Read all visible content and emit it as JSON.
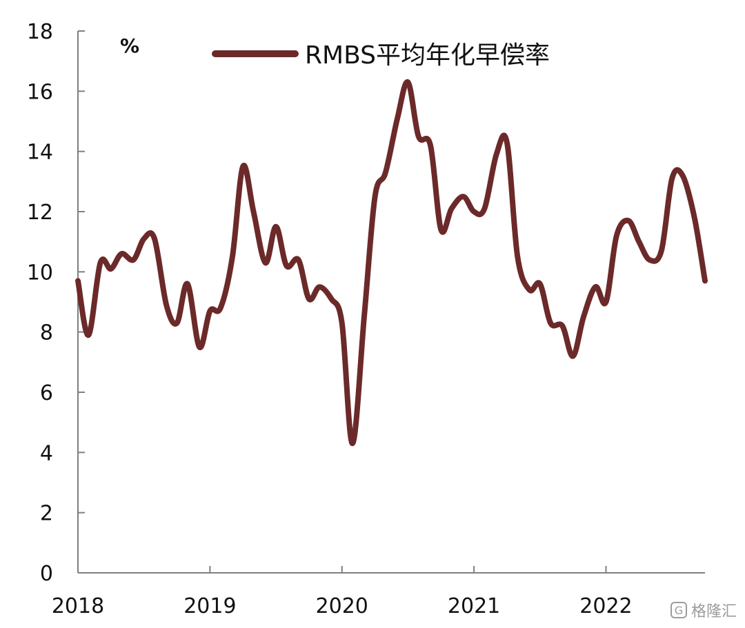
{
  "chart_data": {
    "type": "line",
    "unit": "%",
    "ylim": [
      0,
      18
    ],
    "yticks": [
      "0",
      "2",
      "4",
      "6",
      "8",
      "10",
      "12",
      "14",
      "16",
      "18"
    ],
    "xlim": [
      2018,
      2022.75
    ],
    "xticks": [
      {
        "label": "2018",
        "value": 2018
      },
      {
        "label": "2019",
        "value": 2019
      },
      {
        "label": "2020",
        "value": 2020
      },
      {
        "label": "2021",
        "value": 2021
      },
      {
        "label": "2022",
        "value": 2022
      }
    ],
    "grid": false,
    "legend_position": "top",
    "series": [
      {
        "name": "RMBS平均年化早偿率",
        "color": "#6b2a29",
        "x": [
          2018.0,
          2018.08,
          2018.17,
          2018.25,
          2018.33,
          2018.42,
          2018.5,
          2018.58,
          2018.67,
          2018.75,
          2018.83,
          2018.92,
          2019.0,
          2019.08,
          2019.17,
          2019.25,
          2019.33,
          2019.42,
          2019.5,
          2019.58,
          2019.67,
          2019.75,
          2019.83,
          2019.92,
          2020.0,
          2020.08,
          2020.17,
          2020.25,
          2020.33,
          2020.42,
          2020.5,
          2020.58,
          2020.67,
          2020.75,
          2020.83,
          2020.92,
          2021.0,
          2021.08,
          2021.17,
          2021.25,
          2021.33,
          2021.42,
          2021.5,
          2021.58,
          2021.67,
          2021.75,
          2021.83,
          2021.92,
          2022.0,
          2022.08,
          2022.17,
          2022.25,
          2022.33,
          2022.42,
          2022.5,
          2022.58,
          2022.67,
          2022.75
        ],
        "values": [
          9.7,
          7.9,
          10.3,
          10.1,
          10.6,
          10.4,
          11.1,
          11.1,
          8.9,
          8.3,
          9.6,
          7.5,
          8.7,
          8.8,
          10.5,
          13.5,
          12.0,
          10.3,
          11.5,
          10.2,
          10.4,
          9.1,
          9.5,
          9.1,
          8.3,
          4.3,
          8.6,
          12.5,
          13.3,
          15.1,
          16.3,
          14.5,
          14.2,
          11.4,
          12.1,
          12.5,
          12.0,
          12.1,
          13.9,
          14.3,
          10.5,
          9.4,
          9.6,
          8.3,
          8.2,
          7.2,
          8.5,
          9.5,
          9.0,
          11.2,
          11.7,
          11.0,
          10.4,
          10.7,
          13.1,
          13.2,
          11.8,
          9.7
        ]
      }
    ]
  }
}
